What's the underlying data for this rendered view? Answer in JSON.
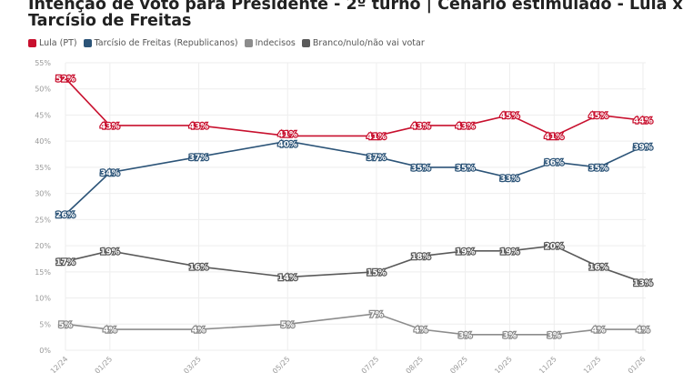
{
  "chart_data": {
    "type": "line",
    "title": "Intenção de voto para Presidente - 2º turno | Cenário estimulado - Lula x Tarcísio de Freitas",
    "categories": [
      "12/24",
      "01/25",
      "03/25",
      "05/25",
      "07/25",
      "08/25",
      "09/25",
      "10/25",
      "11/25",
      "12/25",
      "01/26"
    ],
    "month_index": [
      0,
      1,
      3,
      5,
      7,
      8,
      9,
      10,
      11,
      12,
      13
    ],
    "yticks": [
      "0%",
      "5%",
      "10%",
      "15%",
      "20%",
      "25%",
      "30%",
      "35%",
      "40%",
      "45%",
      "50%",
      "55%"
    ],
    "ylim": [
      0,
      55
    ],
    "grid": true,
    "legend_position": "top-left",
    "series": [
      {
        "name": "Lula (PT)",
        "color": "#c8102e",
        "values": [
          52,
          43,
          43,
          41,
          41,
          43,
          43,
          45,
          41,
          45,
          44
        ]
      },
      {
        "name": "Tarcísio de Freitas (Republicanos)",
        "color": "#2c5478",
        "values": [
          26,
          34,
          37,
          40,
          37,
          35,
          35,
          33,
          36,
          35,
          39
        ]
      },
      {
        "name": "Indecisos",
        "color": "#8c8c8c",
        "values": [
          5,
          4,
          4,
          5,
          7,
          4,
          3,
          3,
          3,
          4,
          4
        ]
      },
      {
        "name": "Branco/nulo/não vai votar",
        "color": "#5a5a5a",
        "values": [
          17,
          19,
          16,
          14,
          15,
          18,
          19,
          19,
          20,
          16,
          13
        ]
      }
    ]
  }
}
